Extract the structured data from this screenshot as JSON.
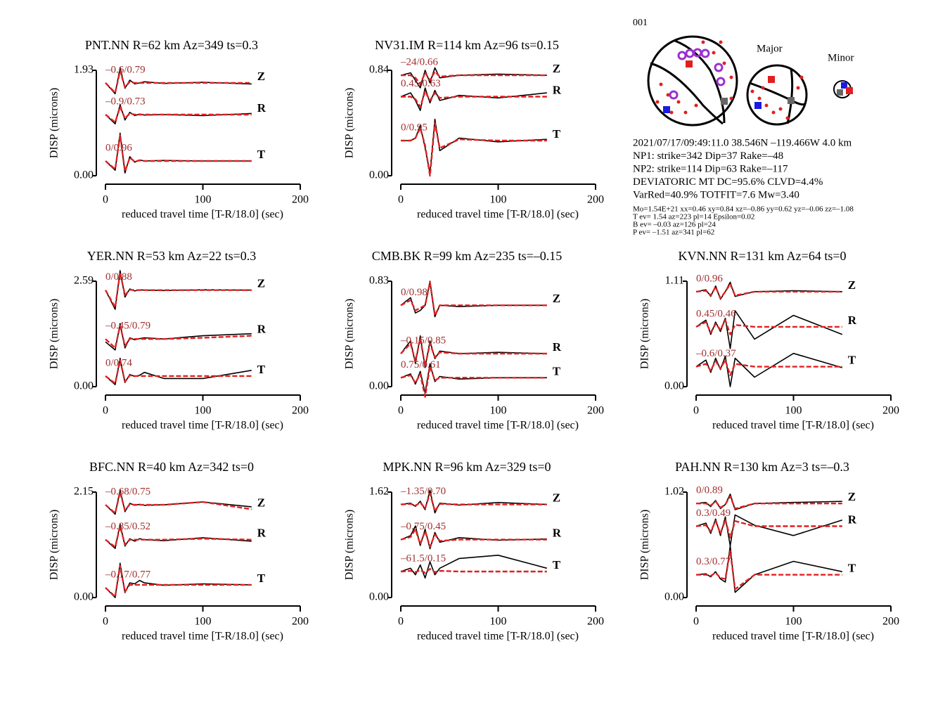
{
  "chart_data": [
    {
      "type": "line",
      "title": "PNT.NN R=62 km Az=349 ts=0.3",
      "ylabel": "DISP (microns)",
      "xlabel": "reduced travel time [T-R/18.0] (sec)",
      "xlim": [
        0,
        200
      ],
      "xticks": [
        0,
        100,
        200
      ],
      "ylim": [
        0,
        1.93
      ],
      "yticks": [
        {
          "value": 0,
          "label": "0.00"
        },
        1.93
      ],
      "observed_color": "#000000",
      "synthetic_color": "#e02020",
      "x": [
        0,
        10,
        15,
        20,
        25,
        30,
        35,
        40,
        60,
        100,
        150
      ],
      "series": [
        {
          "name": "Z",
          "annotation": "–0.6/0.79",
          "observed": [
            1.7,
            1.5,
            1.98,
            1.6,
            1.75,
            1.68,
            1.7,
            1.72,
            1.69,
            1.71,
            1.68
          ],
          "synthetic": [
            1.7,
            1.52,
            1.92,
            1.62,
            1.72,
            1.7,
            1.7,
            1.7,
            1.7,
            1.7,
            1.7
          ]
        },
        {
          "name": "R",
          "annotation": "–0.9/0.73",
          "observed": [
            1.12,
            0.95,
            1.3,
            1.02,
            1.16,
            1.1,
            1.13,
            1.11,
            1.12,
            1.1,
            1.14
          ],
          "synthetic": [
            1.12,
            0.98,
            1.26,
            1.05,
            1.14,
            1.12,
            1.12,
            1.12,
            1.12,
            1.12,
            1.12
          ]
        },
        {
          "name": "T",
          "annotation": "0/0.96",
          "observed": [
            0.27,
            0.1,
            0.78,
            0.05,
            0.35,
            0.25,
            0.29,
            0.27,
            0.28,
            0.27,
            0.27
          ],
          "synthetic": [
            0.27,
            0.12,
            0.74,
            0.08,
            0.33,
            0.26,
            0.28,
            0.27,
            0.27,
            0.27,
            0.27
          ]
        }
      ]
    },
    {
      "type": "line",
      "title": "NV31.IM R=114 km Az=96 ts=0.15",
      "ylabel": "DISP (microns)",
      "xlabel": "reduced travel time [T-R/18.0] (sec)",
      "xlim": [
        0,
        200
      ],
      "xticks": [
        0,
        100,
        200
      ],
      "ylim": [
        0,
        0.84
      ],
      "yticks": [
        {
          "value": 0,
          "label": "0.00"
        },
        0.84
      ],
      "observed_color": "#000000",
      "synthetic_color": "#e02020",
      "x": [
        0,
        10,
        15,
        20,
        25,
        30,
        35,
        40,
        60,
        100,
        150
      ],
      "series": [
        {
          "name": "Z",
          "annotation": "–24/0.66",
          "observed": [
            0.8,
            0.82,
            0.76,
            0.7,
            0.84,
            0.74,
            0.86,
            0.78,
            0.8,
            0.81,
            0.8
          ],
          "synthetic": [
            0.8,
            0.8,
            0.78,
            0.73,
            0.82,
            0.76,
            0.83,
            0.79,
            0.8,
            0.8,
            0.8
          ]
        },
        {
          "name": "R",
          "annotation": "0.45/0.63",
          "observed": [
            0.63,
            0.66,
            0.6,
            0.52,
            0.7,
            0.58,
            0.68,
            0.6,
            0.64,
            0.62,
            0.66
          ],
          "synthetic": [
            0.63,
            0.63,
            0.61,
            0.55,
            0.67,
            0.6,
            0.66,
            0.62,
            0.63,
            0.63,
            0.63
          ]
        },
        {
          "name": "T",
          "annotation": "0/0.95",
          "observed": [
            0.28,
            0.28,
            0.3,
            0.4,
            0.22,
            0.02,
            0.45,
            0.2,
            0.3,
            0.27,
            0.29
          ],
          "synthetic": [
            0.28,
            0.28,
            0.3,
            0.38,
            0.24,
            0.0,
            0.42,
            0.22,
            0.29,
            0.28,
            0.28
          ]
        }
      ]
    },
    {
      "type": "line",
      "title": "YER.NN R=53 km Az=22 ts=0.3",
      "ylabel": "DISP (microns)",
      "xlabel": "reduced travel time [T-R/18.0] (sec)",
      "xlim": [
        0,
        200
      ],
      "xticks": [
        0,
        100,
        200
      ],
      "ylim": [
        0,
        2.59
      ],
      "yticks": [
        {
          "value": 0,
          "label": "0.00"
        },
        2.59
      ],
      "observed_color": "#000000",
      "synthetic_color": "#e02020",
      "x": [
        0,
        10,
        15,
        20,
        25,
        30,
        35,
        40,
        60,
        100,
        150
      ],
      "series": [
        {
          "name": "Z",
          "annotation": "0/0.88",
          "observed": [
            2.37,
            1.9,
            2.85,
            2.2,
            2.4,
            2.35,
            2.38,
            2.37,
            2.36,
            2.38,
            2.37
          ],
          "synthetic": [
            2.37,
            1.95,
            2.8,
            2.25,
            2.38,
            2.37,
            2.37,
            2.37,
            2.37,
            2.37,
            2.37
          ]
        },
        {
          "name": "R",
          "annotation": "–0.45/0.79",
          "observed": [
            1.1,
            0.9,
            1.55,
            0.95,
            1.2,
            1.15,
            1.18,
            1.2,
            1.17,
            1.25,
            1.3
          ],
          "synthetic": [
            1.17,
            0.95,
            1.5,
            1.0,
            1.18,
            1.17,
            1.17,
            1.17,
            1.17,
            1.2,
            1.25
          ]
        },
        {
          "name": "T",
          "annotation": "0/0.74",
          "observed": [
            0.26,
            0.05,
            0.7,
            0.1,
            0.3,
            0.25,
            0.28,
            0.35,
            0.2,
            0.2,
            0.4
          ],
          "synthetic": [
            0.26,
            0.08,
            0.65,
            0.12,
            0.28,
            0.26,
            0.26,
            0.26,
            0.26,
            0.26,
            0.26
          ]
        }
      ]
    },
    {
      "type": "line",
      "title": "CMB.BK R=99 km Az=235 ts=–0.15",
      "ylabel": "DISP (microns)",
      "xlabel": "reduced travel time [T-R/18.0] (sec)",
      "xlim": [
        0,
        200
      ],
      "xticks": [
        0,
        100,
        200
      ],
      "ylim": [
        0,
        0.83
      ],
      "yticks": [
        {
          "value": 0,
          "label": "0.00"
        },
        0.83
      ],
      "observed_color": "#000000",
      "synthetic_color": "#e02020",
      "x": [
        0,
        10,
        15,
        20,
        25,
        30,
        35,
        40,
        60,
        100,
        150
      ],
      "series": [
        {
          "name": "Z",
          "annotation": "0/0.98",
          "observed": [
            0.64,
            0.7,
            0.58,
            0.6,
            0.64,
            0.83,
            0.55,
            0.64,
            0.63,
            0.64,
            0.64
          ],
          "synthetic": [
            0.64,
            0.68,
            0.6,
            0.62,
            0.64,
            0.82,
            0.56,
            0.64,
            0.64,
            0.64,
            0.64
          ]
        },
        {
          "name": "R",
          "annotation": "–0.15/0.85",
          "observed": [
            0.26,
            0.36,
            0.18,
            0.4,
            0.15,
            0.36,
            0.22,
            0.28,
            0.26,
            0.27,
            0.26
          ],
          "synthetic": [
            0.26,
            0.34,
            0.2,
            0.38,
            0.16,
            0.34,
            0.23,
            0.27,
            0.26,
            0.26,
            0.26
          ]
        },
        {
          "name": "T",
          "annotation": "0.75/0.61",
          "observed": [
            0.07,
            0.1,
            0.02,
            0.12,
            -0.05,
            0.18,
            0.04,
            0.08,
            0.06,
            0.07,
            0.07
          ],
          "synthetic": [
            0.07,
            0.09,
            0.03,
            0.1,
            -0.08,
            0.16,
            0.05,
            0.07,
            0.07,
            0.07,
            0.07
          ]
        }
      ]
    },
    {
      "type": "line",
      "title": "KVN.NN R=131 km Az=64 ts=0",
      "ylabel": "DISP (microns)",
      "xlabel": "reduced travel time [T-R/18.0] (sec)",
      "xlim": [
        0,
        200
      ],
      "xticks": [
        0,
        100,
        200
      ],
      "ylim": [
        0,
        1.11
      ],
      "yticks": [
        {
          "value": 0,
          "label": "0.00"
        },
        1.11
      ],
      "observed_color": "#000000",
      "synthetic_color": "#e02020",
      "x": [
        0,
        10,
        15,
        20,
        25,
        30,
        35,
        40,
        60,
        100,
        150
      ],
      "series": [
        {
          "name": "Z",
          "annotation": "0/0.96",
          "observed": [
            1.0,
            1.02,
            0.95,
            1.06,
            0.92,
            1.0,
            1.1,
            0.95,
            1.0,
            1.01,
            1.0
          ],
          "synthetic": [
            1.0,
            1.01,
            0.96,
            1.05,
            0.93,
            1.0,
            1.08,
            0.96,
            1.0,
            1.0,
            1.0
          ]
        },
        {
          "name": "R",
          "annotation": "0.45/0.46",
          "observed": [
            0.63,
            0.7,
            0.55,
            0.68,
            0.58,
            0.72,
            0.4,
            0.8,
            0.5,
            0.75,
            0.55
          ],
          "synthetic": [
            0.63,
            0.68,
            0.57,
            0.66,
            0.6,
            0.7,
            0.55,
            0.65,
            0.63,
            0.63,
            0.63
          ]
        },
        {
          "name": "T",
          "annotation": "–0.6/0.37",
          "observed": [
            0.21,
            0.28,
            0.15,
            0.3,
            0.18,
            0.32,
            0.0,
            0.3,
            0.1,
            0.35,
            0.2
          ],
          "synthetic": [
            0.21,
            0.24,
            0.17,
            0.27,
            0.19,
            0.28,
            0.12,
            0.24,
            0.21,
            0.21,
            0.21
          ]
        }
      ]
    },
    {
      "type": "line",
      "title": "BFC.NN R=40 km Az=342 ts=0",
      "ylabel": "DISP (microns)",
      "xlabel": "reduced travel time [T-R/18.0] (sec)",
      "xlim": [
        0,
        200
      ],
      "xticks": [
        0,
        100,
        200
      ],
      "ylim": [
        0,
        2.15
      ],
      "yticks": [
        {
          "value": 0,
          "label": "0.00"
        },
        2.15
      ],
      "observed_color": "#000000",
      "synthetic_color": "#e02020",
      "x": [
        0,
        10,
        15,
        20,
        25,
        30,
        35,
        40,
        60,
        100,
        150
      ],
      "series": [
        {
          "name": "Z",
          "annotation": "–0.68/0.75",
          "observed": [
            1.89,
            1.7,
            2.2,
            1.75,
            1.92,
            1.88,
            1.9,
            1.88,
            1.89,
            1.95,
            1.85
          ],
          "synthetic": [
            1.89,
            1.72,
            2.15,
            1.78,
            1.9,
            1.89,
            1.89,
            1.89,
            1.89,
            1.95,
            1.8
          ]
        },
        {
          "name": "R",
          "annotation": "–0.85/0.52",
          "observed": [
            1.18,
            1.0,
            1.5,
            1.05,
            1.2,
            1.15,
            1.2,
            1.18,
            1.16,
            1.22,
            1.15
          ],
          "synthetic": [
            1.18,
            1.03,
            1.45,
            1.08,
            1.18,
            1.18,
            1.18,
            1.18,
            1.18,
            1.2,
            1.18
          ]
        },
        {
          "name": "T",
          "annotation": "–0.17/0.77",
          "observed": [
            0.2,
            0.0,
            0.7,
            0.1,
            0.3,
            0.28,
            0.35,
            0.3,
            0.25,
            0.28,
            0.26
          ],
          "synthetic": [
            0.2,
            0.02,
            0.65,
            0.12,
            0.26,
            0.26,
            0.26,
            0.26,
            0.26,
            0.26,
            0.26
          ]
        }
      ]
    },
    {
      "type": "line",
      "title": "MPK.NN R=96 km Az=329 ts=0",
      "ylabel": "DISP (microns)",
      "xlabel": "reduced travel time [T-R/18.0] (sec)",
      "xlim": [
        0,
        200
      ],
      "xticks": [
        0,
        100,
        200
      ],
      "ylim": [
        0,
        1.62
      ],
      "yticks": [
        {
          "value": 0,
          "label": "0.00"
        },
        1.62
      ],
      "observed_color": "#000000",
      "synthetic_color": "#e02020",
      "x": [
        0,
        10,
        15,
        20,
        25,
        30,
        35,
        40,
        60,
        100,
        150
      ],
      "series": [
        {
          "name": "Z",
          "annotation": "–1.35/0.70",
          "observed": [
            1.43,
            1.45,
            1.4,
            1.48,
            1.35,
            1.65,
            1.3,
            1.45,
            1.42,
            1.46,
            1.43
          ],
          "synthetic": [
            1.43,
            1.44,
            1.41,
            1.46,
            1.37,
            1.6,
            1.33,
            1.44,
            1.43,
            1.43,
            1.43
          ]
        },
        {
          "name": "R",
          "annotation": "–0.75/0.45",
          "observed": [
            0.89,
            0.95,
            1.1,
            0.8,
            1.05,
            0.75,
            1.0,
            0.85,
            0.92,
            0.88,
            0.9
          ],
          "synthetic": [
            0.89,
            0.93,
            1.05,
            0.82,
            1.02,
            0.78,
            0.97,
            0.87,
            0.89,
            0.89,
            0.89
          ]
        },
        {
          "name": "T",
          "annotation": "–61.5/0.15",
          "observed": [
            0.4,
            0.45,
            0.35,
            0.5,
            0.3,
            0.55,
            0.35,
            0.45,
            0.6,
            0.65,
            0.45
          ],
          "synthetic": [
            0.4,
            0.41,
            0.39,
            0.42,
            0.38,
            0.44,
            0.39,
            0.41,
            0.4,
            0.4,
            0.4
          ]
        }
      ]
    },
    {
      "type": "line",
      "title": "PAH.NN R=130 km Az=3 ts=–0.3",
      "ylabel": "DISP (microns)",
      "xlabel": "reduced travel time [T-R/18.0] (sec)",
      "xlim": [
        0,
        200
      ],
      "xticks": [
        0,
        100,
        200
      ],
      "ylim": [
        0,
        1.02
      ],
      "yticks": [
        {
          "value": 0,
          "label": "0.00"
        },
        1.02
      ],
      "observed_color": "#000000",
      "synthetic_color": "#e02020",
      "x": [
        0,
        10,
        15,
        20,
        25,
        30,
        35,
        40,
        60,
        100,
        150
      ],
      "series": [
        {
          "name": "Z",
          "annotation": "0/0.89",
          "observed": [
            0.91,
            0.92,
            0.88,
            0.94,
            0.86,
            0.9,
            1.0,
            0.85,
            0.91,
            0.92,
            0.93
          ],
          "synthetic": [
            0.91,
            0.91,
            0.89,
            0.93,
            0.87,
            0.9,
            0.98,
            0.86,
            0.91,
            0.91,
            0.91
          ]
        },
        {
          "name": "R",
          "annotation": "0.3/0.49",
          "observed": [
            0.69,
            0.72,
            0.62,
            0.76,
            0.6,
            0.78,
            0.5,
            0.8,
            0.7,
            0.6,
            0.75
          ],
          "synthetic": [
            0.69,
            0.7,
            0.64,
            0.74,
            0.62,
            0.75,
            0.58,
            0.74,
            0.69,
            0.69,
            0.69
          ]
        },
        {
          "name": "T",
          "annotation": "0.3/0.77",
          "observed": [
            0.22,
            0.23,
            0.2,
            0.25,
            0.18,
            0.15,
            0.5,
            0.05,
            0.22,
            0.35,
            0.25
          ],
          "synthetic": [
            0.22,
            0.22,
            0.21,
            0.24,
            0.19,
            0.18,
            0.45,
            0.08,
            0.22,
            0.22,
            0.22
          ]
        }
      ]
    }
  ],
  "event": {
    "id": "001",
    "major_label": "Major",
    "minor_label": "Minor",
    "lines": [
      "2021/07/17/09:49:11.0 38.546N –119.466W 4.0 km",
      "NP1: strike=342 Dip=37 Rake=–48",
      "NP2: strike=114 Dip=63 Rake=–117",
      "DEVIATORIC MT DC=95.6% CLVD=4.4%",
      "VarRed=40.9% TOTFIT=7.6 Mw=3.40"
    ],
    "details": [
      "Mo=1.54E+21 xx=0.46 xy=0.84 xz=–0.86 yy=0.62 yz=–0.06 zz=–1.08",
      "T ev=  1.54 az=223 pl=14 Epsilon=0.02",
      "B ev= –0.03 az=126 pl=24",
      "P ev= –1.51 az=341 pl=62"
    ]
  }
}
